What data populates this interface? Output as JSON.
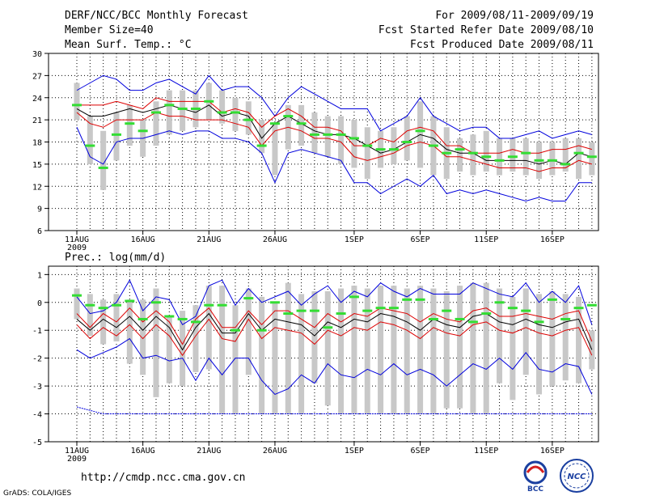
{
  "header": {
    "left": [
      "DERF/NCC/BCC Monthly Forecast",
      "Member Size=40",
      "Mean Surf. Temp.: °C"
    ],
    "right": [
      "For 2009/08/11-2009/09/19",
      "Fcst Started Refer Date 2009/08/10",
      "Fcst Produced Date 2009/08/11"
    ]
  },
  "footer": {
    "url": "http://cmdp.ncc.cma.gov.cn",
    "grads": "GrADS: COLA/IGES",
    "logo_bcc": "BCC",
    "logo_ncc": "NCC"
  },
  "colors": {
    "box": "#c8c8c8",
    "outer": "#0000dd",
    "inner": "#dd0000",
    "mean": "#000000",
    "median": "#33dd33"
  },
  "chart_data": [
    {
      "type": "box",
      "title": "Mean Surf. Temp.: °C",
      "x_ticks": [
        "11AUG",
        "16AUG",
        "21AUG",
        "26AUG",
        "1SEP",
        "6SEP",
        "11SEP",
        "16SEP"
      ],
      "x_tick_days": [
        1,
        6,
        11,
        16,
        22,
        27,
        32,
        37
      ],
      "year_label": "2009",
      "ylim": [
        6,
        30
      ],
      "yticks": [
        6,
        9,
        12,
        15,
        18,
        21,
        24,
        27,
        30
      ],
      "box_low": [
        21.0,
        15.0,
        11.5,
        15.5,
        17.5,
        16.0,
        17.5,
        19.0,
        19.5,
        20.0,
        21.0,
        20.5,
        19.5,
        19.0,
        16.5,
        13.5,
        17.0,
        17.5,
        16.5,
        16.0,
        15.0,
        14.5,
        13.0,
        14.5,
        15.0,
        15.5,
        14.5,
        13.5,
        13.0,
        14.0,
        13.5,
        14.0,
        13.5,
        14.0,
        13.5,
        13.0,
        13.5,
        14.0,
        13.0,
        13.5
      ],
      "box_high": [
        26.0,
        21.5,
        19.5,
        22.0,
        23.0,
        21.0,
        23.5,
        25.0,
        25.0,
        25.0,
        26.0,
        25.0,
        24.0,
        23.5,
        21.0,
        20.5,
        23.0,
        23.0,
        22.0,
        21.5,
        21.5,
        21.0,
        20.0,
        19.5,
        20.0,
        21.5,
        23.5,
        21.5,
        20.0,
        18.5,
        19.0,
        19.5,
        18.5,
        18.5,
        18.5,
        18.0,
        18.0,
        18.5,
        18.5,
        18.0
      ],
      "outer_high": [
        25.0,
        26.0,
        27.0,
        26.5,
        25.0,
        25.0,
        26.0,
        26.5,
        25.5,
        24.5,
        27.0,
        25.0,
        25.5,
        25.5,
        24.0,
        21.5,
        24.0,
        25.5,
        24.5,
        23.5,
        22.5,
        22.5,
        22.5,
        19.5,
        20.5,
        21.5,
        24.0,
        21.5,
        20.5,
        19.5,
        20.0,
        20.0,
        18.5,
        18.5,
        19.0,
        19.5,
        18.5,
        19.0,
        19.5,
        19.0
      ],
      "inner_high": [
        23.0,
        23.0,
        23.0,
        23.5,
        23.0,
        22.5,
        24.0,
        23.5,
        23.5,
        23.5,
        23.5,
        22.0,
        22.5,
        22.0,
        20.0,
        21.5,
        22.5,
        21.5,
        20.0,
        20.0,
        19.5,
        17.5,
        17.5,
        18.5,
        18.0,
        19.5,
        20.0,
        19.5,
        17.5,
        17.5,
        16.5,
        16.5,
        16.5,
        17.0,
        16.5,
        16.5,
        17.0,
        17.0,
        17.5,
        17.0
      ],
      "mean": [
        22.5,
        21.5,
        21.5,
        22.0,
        22.5,
        22.0,
        22.5,
        23.0,
        22.5,
        22.0,
        23.0,
        21.5,
        22.0,
        21.5,
        18.5,
        20.5,
        21.5,
        20.5,
        19.5,
        19.0,
        19.0,
        18.5,
        17.5,
        16.5,
        17.0,
        18.0,
        19.0,
        18.5,
        17.0,
        16.5,
        16.5,
        15.5,
        15.5,
        15.5,
        15.5,
        15.0,
        15.5,
        15.0,
        16.5,
        16.0
      ],
      "inner_low": [
        22.0,
        20.5,
        20.0,
        21.0,
        21.0,
        21.0,
        22.0,
        21.5,
        21.5,
        21.0,
        21.0,
        21.0,
        20.5,
        20.0,
        17.5,
        19.5,
        20.0,
        19.5,
        18.5,
        18.5,
        18.0,
        16.0,
        15.5,
        16.0,
        16.5,
        17.5,
        18.0,
        17.5,
        16.0,
        16.0,
        15.5,
        15.0,
        14.5,
        14.5,
        14.5,
        14.0,
        14.5,
        14.5,
        15.5,
        15.0
      ],
      "outer_low": [
        20.0,
        16.0,
        15.0,
        18.0,
        18.5,
        18.5,
        19.0,
        19.5,
        19.0,
        19.5,
        19.5,
        18.5,
        18.5,
        18.0,
        16.5,
        12.5,
        16.5,
        17.0,
        16.5,
        16.0,
        15.5,
        12.5,
        12.5,
        11.0,
        12.0,
        13.0,
        12.0,
        13.5,
        11.0,
        11.5,
        11.0,
        11.5,
        11.0,
        10.5,
        10.0,
        10.5,
        10.0,
        10.0,
        12.5,
        12.5
      ],
      "median": [
        23.0,
        17.5,
        14.5,
        19.0,
        20.5,
        19.5,
        22.0,
        23.0,
        22.5,
        22.5,
        23.5,
        22.0,
        22.0,
        21.0,
        17.5,
        20.5,
        21.5,
        20.5,
        19.0,
        19.0,
        19.0,
        18.5,
        17.5,
        17.0,
        17.0,
        18.0,
        19.5,
        17.5,
        16.5,
        17.0,
        16.5,
        16.0,
        15.5,
        16.0,
        16.5,
        15.5,
        15.5,
        15.0,
        16.5,
        16.0
      ]
    },
    {
      "type": "box",
      "title": "Prec.: log(mm/d)",
      "x_ticks": [
        "11AUG",
        "16AUG",
        "21AUG",
        "26AUG",
        "1SEP",
        "6SEP",
        "11SEP",
        "16SEP"
      ],
      "x_tick_days": [
        1,
        6,
        11,
        16,
        22,
        27,
        32,
        37
      ],
      "year_label": "2009",
      "ylim": [
        -5,
        1.3
      ],
      "yticks": [
        -5,
        -4,
        -3,
        -2,
        -1,
        0,
        1
      ],
      "box_low": [
        -0.6,
        -1.2,
        -1.5,
        -1.4,
        -2.2,
        -2.6,
        -3.4,
        -2.9,
        -3.0,
        -2.5,
        -2.4,
        -4.0,
        -4.0,
        -2.6,
        -4.0,
        -4.0,
        -4.0,
        -4.0,
        -2.9,
        -3.7,
        -4.0,
        -4.0,
        -4.0,
        -4.0,
        -4.0,
        -4.0,
        -4.0,
        -4.0,
        -3.8,
        -3.8,
        -4.0,
        -4.0,
        -2.9,
        -3.5,
        -2.6,
        -3.3,
        -3.0,
        -2.8,
        -2.9,
        -2.4
      ],
      "box_high": [
        0.5,
        0.3,
        0.1,
        0.3,
        0.1,
        0.1,
        0.5,
        -0.5,
        -0.3,
        -0.1,
        0.6,
        0.6,
        -0.1,
        0.5,
        0.2,
        0.0,
        0.7,
        0.3,
        0.4,
        0.4,
        0.5,
        0.6,
        0.5,
        0.6,
        0.6,
        0.5,
        0.6,
        0.5,
        0.4,
        0.6,
        0.7,
        0.7,
        0.5,
        0.2,
        0.5,
        0.3,
        0.4,
        0.3,
        0.2,
        -1.0
      ],
      "outer_high": [
        0.2,
        -0.4,
        -0.3,
        0.0,
        0.8,
        -0.3,
        0.2,
        0.1,
        -0.8,
        -0.5,
        0.6,
        0.8,
        -0.1,
        0.5,
        0.0,
        0.2,
        0.4,
        -0.1,
        0.3,
        0.6,
        0.0,
        0.4,
        0.2,
        0.7,
        0.4,
        0.2,
        0.5,
        0.3,
        0.3,
        0.3,
        0.7,
        0.5,
        0.3,
        0.2,
        0.7,
        0.0,
        0.4,
        0.0,
        0.6,
        -0.8
      ],
      "inner_high": [
        -0.4,
        -0.9,
        -0.4,
        -0.7,
        -0.2,
        -0.7,
        -0.3,
        -0.7,
        -1.5,
        -0.6,
        -0.2,
        -0.9,
        -0.9,
        -0.3,
        -0.8,
        -0.3,
        -0.3,
        -0.6,
        -0.9,
        -0.4,
        -0.7,
        -0.4,
        -0.5,
        -0.2,
        -0.3,
        -0.4,
        -0.7,
        -0.4,
        -0.6,
        -0.7,
        -0.3,
        -0.2,
        -0.5,
        -0.5,
        -0.4,
        -0.5,
        -0.6,
        -0.4,
        -0.3,
        -1.4
      ],
      "mean": [
        -0.6,
        -1.0,
        -0.6,
        -0.9,
        -0.5,
        -1.0,
        -0.5,
        -0.9,
        -1.7,
        -0.9,
        -0.4,
        -1.1,
        -1.1,
        -0.4,
        -1.0,
        -0.6,
        -0.7,
        -0.8,
        -1.2,
        -0.7,
        -0.9,
        -0.6,
        -0.7,
        -0.4,
        -0.5,
        -0.7,
        -1.0,
        -0.6,
        -0.8,
        -0.9,
        -0.5,
        -0.4,
        -0.7,
        -0.8,
        -0.6,
        -0.8,
        -0.9,
        -0.7,
        -0.6,
        -1.7
      ],
      "inner_low": [
        -0.8,
        -1.3,
        -0.9,
        -1.2,
        -0.8,
        -1.3,
        -0.8,
        -1.2,
        -1.9,
        -1.2,
        -0.6,
        -1.3,
        -1.4,
        -0.6,
        -1.3,
        -0.9,
        -1.0,
        -1.1,
        -1.5,
        -1.0,
        -1.2,
        -0.9,
        -1.0,
        -0.7,
        -0.8,
        -1.0,
        -1.3,
        -0.9,
        -1.1,
        -1.2,
        -0.8,
        -0.7,
        -1.0,
        -1.1,
        -0.9,
        -1.1,
        -1.2,
        -1.0,
        -0.9,
        -1.9
      ],
      "outer_low": [
        -1.7,
        -2.0,
        -1.8,
        -1.6,
        -1.3,
        -2.0,
        -1.9,
        -2.1,
        -2.0,
        -2.8,
        -2.0,
        -2.6,
        -2.0,
        -2.0,
        -2.8,
        -3.3,
        -3.1,
        -2.6,
        -2.9,
        -2.2,
        -2.6,
        -2.7,
        -2.4,
        -2.6,
        -2.2,
        -2.6,
        -2.4,
        -2.6,
        -3.0,
        -2.6,
        -2.2,
        -2.4,
        -2.0,
        -2.4,
        -1.8,
        -2.4,
        -2.5,
        -2.2,
        -2.3,
        -3.3
      ],
      "median": [
        0.25,
        -0.1,
        -0.2,
        -0.1,
        0.05,
        -0.6,
        0.0,
        -0.5,
        -0.6,
        -0.7,
        -0.1,
        -0.1,
        -1.0,
        0.15,
        -1.0,
        0.0,
        -0.4,
        -0.3,
        -0.3,
        -0.9,
        -0.4,
        0.2,
        -0.3,
        -0.2,
        -0.2,
        0.1,
        0.1,
        -0.6,
        -0.3,
        -0.6,
        -0.7,
        -0.4,
        0.0,
        -0.2,
        -0.3,
        -0.7,
        0.1,
        -0.6,
        -0.2,
        -0.1
      ],
      "floor_line": -4.0
    }
  ]
}
